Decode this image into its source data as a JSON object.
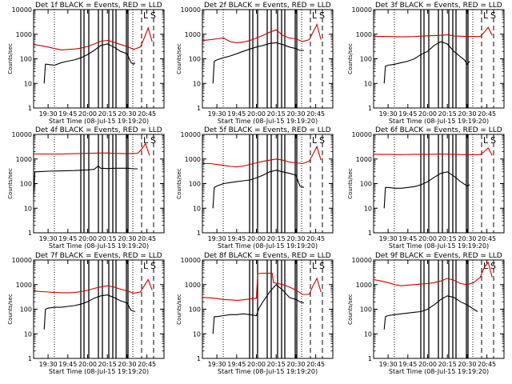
{
  "figure": {
    "panel_titles": [
      "Det 1f BLACK = Events, RED = LLD",
      "Det 2f BLACK = Events, RED = LLD",
      "Det 3f BLACK = Events, RED = LLD",
      "Det 4f BLACK = Events, RED = LLD",
      "Det 5f BLACK = Events, RED = LLD",
      "Det 6f BLACK = Events, RED = LLD",
      "Det 7f BLACK = Events, RED = LLD",
      "Det 8f BLACK = Events, RED = LLD",
      "Det 9f BLACK = Events, RED = LLD"
    ],
    "ylabel": "Counts/sec",
    "xlabel": "Start Time (08-Jul-15 19:19:20)",
    "panel_letters": [
      "L",
      "S"
    ],
    "colors": {
      "events": "#000000",
      "lld": "#cc0000"
    }
  },
  "chart_data": [
    {
      "type": "line",
      "title": "Det 1f BLACK = Events, RED = LLD",
      "xlabel": "Start Time (08-Jul-15 19:19:20)",
      "ylabel": "Counts/sec",
      "yscale": "log",
      "ylim": [
        1,
        10000
      ],
      "xlim": [
        "19:19",
        "20:58"
      ],
      "xticks": [
        "19:30",
        "19:45",
        "20:00",
        "20:15",
        "20:30",
        "20:45"
      ],
      "yticks": [
        "1",
        "10",
        "100",
        "1000",
        "10000"
      ],
      "series": [
        {
          "name": "Events",
          "color": "#000000",
          "x": [
            "19:27",
            "19:28",
            "19:29",
            "19:35",
            "19:40",
            "19:45",
            "19:50",
            "19:55",
            "20:00",
            "20:05",
            "20:10",
            "20:15",
            "20:20",
            "20:25",
            "20:30",
            "20:33",
            "20:35",
            "20:36"
          ],
          "y": [
            10,
            60,
            60,
            55,
            70,
            80,
            90,
            110,
            150,
            220,
            350,
            400,
            300,
            200,
            160,
            70,
            60,
            70
          ]
        },
        {
          "name": "LLD",
          "color": "#cc0000",
          "x": [
            "19:19",
            "19:25",
            "19:30",
            "19:35",
            "19:40",
            "19:45",
            "19:50",
            "19:55",
            "20:00",
            "20:05",
            "20:10",
            "20:15",
            "20:20",
            "20:25",
            "20:30",
            "20:35",
            "20:40",
            "20:43",
            "20:46",
            "20:49"
          ],
          "y": [
            380,
            340,
            300,
            260,
            230,
            240,
            250,
            270,
            320,
            400,
            520,
            560,
            470,
            380,
            320,
            240,
            300,
            700,
            1800,
            500
          ]
        }
      ]
    },
    {
      "type": "line",
      "title": "Det 2f BLACK = Events, RED = LLD",
      "xlabel": "Start Time (08-Jul-15 19:19:20)",
      "ylabel": "Counts/sec",
      "yscale": "log",
      "ylim": [
        1,
        10000
      ],
      "xlim": [
        "19:19",
        "20:58"
      ],
      "xticks": [
        "19:30",
        "19:45",
        "20:00",
        "20:15",
        "20:30",
        "20:45"
      ],
      "yticks": [
        "1",
        "10",
        "100",
        "1000",
        "10000"
      ],
      "series": [
        {
          "name": "Events",
          "color": "#000000",
          "x": [
            "19:27",
            "19:28",
            "19:30",
            "19:35",
            "19:40",
            "19:45",
            "19:50",
            "19:55",
            "20:00",
            "20:05",
            "20:10",
            "20:15",
            "20:20",
            "20:25",
            "20:30",
            "20:33",
            "20:36"
          ],
          "y": [
            10,
            80,
            90,
            110,
            130,
            160,
            200,
            250,
            300,
            350,
            420,
            450,
            380,
            300,
            260,
            220,
            220
          ]
        },
        {
          "name": "LLD",
          "color": "#cc0000",
          "x": [
            "19:19",
            "19:25",
            "19:30",
            "19:35",
            "19:40",
            "19:45",
            "19:50",
            "19:55",
            "20:00",
            "20:05",
            "20:10",
            "20:15",
            "20:20",
            "20:25",
            "20:30",
            "20:35",
            "20:40",
            "20:43",
            "20:46",
            "20:49"
          ],
          "y": [
            550,
            600,
            650,
            700,
            500,
            450,
            480,
            550,
            700,
            900,
            1200,
            1500,
            900,
            700,
            650,
            500,
            600,
            1200,
            2500,
            600
          ]
        }
      ]
    },
    {
      "type": "line",
      "title": "Det 3f BLACK = Events, RED = LLD",
      "xlabel": "Start Time (08-Jul-15 19:19:20)",
      "ylabel": "Counts/sec",
      "yscale": "log",
      "ylim": [
        1,
        10000
      ],
      "xlim": [
        "19:19",
        "20:58"
      ],
      "xticks": [
        "19:30",
        "19:45",
        "20:00",
        "20:15",
        "20:30",
        "20:45"
      ],
      "yticks": [
        "1",
        "10",
        "100",
        "1000",
        "10000"
      ],
      "series": [
        {
          "name": "Events",
          "color": "#000000",
          "x": [
            "19:27",
            "19:28",
            "19:30",
            "19:35",
            "19:40",
            "19:45",
            "19:50",
            "19:55",
            "20:00",
            "20:05",
            "20:10",
            "20:15",
            "20:20",
            "20:25",
            "20:28",
            "20:30",
            "20:32"
          ],
          "y": [
            10,
            50,
            55,
            60,
            70,
            80,
            100,
            150,
            200,
            350,
            500,
            400,
            200,
            120,
            90,
            60,
            80
          ]
        },
        {
          "name": "LLD",
          "color": "#cc0000",
          "x": [
            "19:19",
            "19:30",
            "19:40",
            "19:50",
            "20:00",
            "20:10",
            "20:15",
            "20:20",
            "20:30",
            "20:40",
            "20:43",
            "20:46",
            "20:49"
          ],
          "y": [
            820,
            800,
            780,
            800,
            860,
            900,
            950,
            850,
            800,
            800,
            1200,
            1900,
            900
          ]
        }
      ]
    },
    {
      "type": "line",
      "title": "Det 4f BLACK = Events, RED = LLD",
      "xlabel": "Start Time (08-Jul-15 19:19:20)",
      "ylabel": "Counts/sec",
      "yscale": "log",
      "ylim": [
        1,
        10000
      ],
      "xlim": [
        "19:19",
        "20:58"
      ],
      "xticks": [
        "19:30",
        "19:45",
        "20:00",
        "20:15",
        "20:30",
        "20:45"
      ],
      "yticks": [
        "1",
        "10",
        "100",
        "1000",
        "10000"
      ],
      "series": [
        {
          "name": "Events",
          "color": "#000000",
          "x": [
            "19:19",
            "19:20",
            "19:25",
            "19:30",
            "19:40",
            "19:50",
            "20:00",
            "20:05",
            "20:08",
            "20:10",
            "20:15",
            "20:20",
            "20:30",
            "20:35",
            "20:38"
          ],
          "y": [
            30,
            300,
            310,
            320,
            330,
            340,
            360,
            380,
            520,
            420,
            410,
            420,
            420,
            400,
            400
          ]
        },
        {
          "name": "LLD",
          "color": "#cc0000",
          "x": [
            "19:19",
            "19:30",
            "19:40",
            "19:50",
            "20:00",
            "20:10",
            "20:15",
            "20:20",
            "20:30",
            "20:38",
            "20:41",
            "20:44",
            "20:47"
          ],
          "y": [
            1600,
            1600,
            1600,
            1650,
            1700,
            1750,
            1750,
            1700,
            1650,
            1700,
            2500,
            4200,
            1400
          ]
        }
      ]
    },
    {
      "type": "line",
      "title": "Det 5f BLACK = Events, RED = LLD",
      "xlabel": "Start Time (08-Jul-15 19:19:20)",
      "ylabel": "Counts/sec",
      "yscale": "log",
      "ylim": [
        1,
        10000
      ],
      "xlim": [
        "19:19",
        "20:58"
      ],
      "xticks": [
        "19:30",
        "19:45",
        "20:00",
        "20:15",
        "20:30",
        "20:45"
      ],
      "yticks": [
        "1",
        "10",
        "100",
        "1000",
        "10000"
      ],
      "series": [
        {
          "name": "Events",
          "color": "#000000",
          "x": [
            "19:27",
            "19:28",
            "19:30",
            "19:35",
            "19:40",
            "19:45",
            "19:50",
            "19:55",
            "20:00",
            "20:05",
            "20:10",
            "20:15",
            "20:20",
            "20:25",
            "20:30",
            "20:33",
            "20:36"
          ],
          "y": [
            10,
            70,
            80,
            100,
            110,
            120,
            130,
            140,
            170,
            220,
            300,
            350,
            300,
            260,
            220,
            80,
            70
          ]
        },
        {
          "name": "LLD",
          "color": "#cc0000",
          "x": [
            "19:19",
            "19:25",
            "19:30",
            "19:35",
            "19:40",
            "19:45",
            "19:50",
            "19:55",
            "20:00",
            "20:05",
            "20:10",
            "20:15",
            "20:20",
            "20:25",
            "20:30",
            "20:35",
            "20:40",
            "20:43",
            "20:46",
            "20:49"
          ],
          "y": [
            650,
            650,
            600,
            550,
            500,
            480,
            520,
            600,
            700,
            800,
            900,
            1000,
            900,
            750,
            700,
            650,
            800,
            1600,
            3200,
            900
          ]
        }
      ]
    },
    {
      "type": "line",
      "title": "Det 6f BLACK = Events, RED = LLD",
      "xlabel": "Start Time (08-Jul-15 19:19:20)",
      "ylabel": "Counts/sec",
      "yscale": "log",
      "ylim": [
        1,
        10000
      ],
      "xlim": [
        "19:19",
        "20:58"
      ],
      "xticks": [
        "19:30",
        "19:45",
        "20:00",
        "20:15",
        "20:30",
        "20:45"
      ],
      "yticks": [
        "1",
        "10",
        "100",
        "1000",
        "10000"
      ],
      "series": [
        {
          "name": "Events",
          "color": "#000000",
          "x": [
            "19:27",
            "19:28",
            "19:30",
            "19:35",
            "19:40",
            "19:45",
            "19:50",
            "19:55",
            "20:00",
            "20:05",
            "20:10",
            "20:15",
            "20:20",
            "20:25",
            "20:30",
            "20:32"
          ],
          "y": [
            10,
            70,
            70,
            65,
            65,
            70,
            75,
            90,
            120,
            180,
            260,
            300,
            200,
            120,
            80,
            90
          ]
        },
        {
          "name": "LLD",
          "color": "#cc0000",
          "x": [
            "19:19",
            "19:30",
            "19:40",
            "19:50",
            "20:00",
            "20:10",
            "20:20",
            "20:30",
            "20:40",
            "20:43",
            "20:46",
            "20:49"
          ],
          "y": [
            1550,
            1550,
            1500,
            1550,
            1550,
            1600,
            1550,
            1500,
            1500,
            2000,
            2800,
            1400
          ]
        }
      ]
    },
    {
      "type": "line",
      "title": "Det 7f BLACK = Events, RED = LLD",
      "xlabel": "Start Time (08-Jul-15 19:19:20)",
      "ylabel": "Counts/sec",
      "yscale": "log",
      "ylim": [
        1,
        10000
      ],
      "xlim": [
        "19:19",
        "20:58"
      ],
      "xticks": [
        "19:30",
        "19:45",
        "20:00",
        "20:15",
        "20:30",
        "20:45"
      ],
      "yticks": [
        "1",
        "10",
        "100",
        "1000",
        "10000"
      ],
      "series": [
        {
          "name": "Events",
          "color": "#000000",
          "x": [
            "19:27",
            "19:28",
            "19:30",
            "19:35",
            "19:40",
            "19:45",
            "19:50",
            "19:55",
            "20:00",
            "20:05",
            "20:10",
            "20:15",
            "20:20",
            "20:25",
            "20:30",
            "20:33",
            "20:36"
          ],
          "y": [
            15,
            100,
            110,
            120,
            120,
            130,
            140,
            160,
            200,
            280,
            350,
            380,
            300,
            220,
            180,
            90,
            80
          ]
        },
        {
          "name": "LLD",
          "color": "#cc0000",
          "x": [
            "19:19",
            "19:25",
            "19:30",
            "19:35",
            "19:40",
            "19:45",
            "19:50",
            "19:55",
            "20:00",
            "20:05",
            "20:10",
            "20:15",
            "20:20",
            "20:25",
            "20:30",
            "20:35",
            "20:40",
            "20:43",
            "20:46",
            "20:49"
          ],
          "y": [
            550,
            520,
            500,
            480,
            470,
            460,
            480,
            520,
            580,
            700,
            800,
            900,
            800,
            650,
            550,
            450,
            500,
            900,
            1600,
            600
          ]
        }
      ]
    },
    {
      "type": "line",
      "title": "Det 8f BLACK = Events, RED = LLD",
      "xlabel": "Start Time (08-Jul-15 19:19:20)",
      "ylabel": "Counts/sec",
      "yscale": "log",
      "ylim": [
        1,
        10000
      ],
      "xlim": [
        "19:19",
        "20:58"
      ],
      "xticks": [
        "19:30",
        "19:45",
        "20:00",
        "20:15",
        "20:30",
        "20:45"
      ],
      "yticks": [
        "1",
        "10",
        "100",
        "1000",
        "10000"
      ],
      "series": [
        {
          "name": "Events",
          "color": "#000000",
          "x": [
            "19:27",
            "19:28",
            "19:30",
            "19:35",
            "19:40",
            "19:45",
            "19:50",
            "19:55",
            "20:00",
            "20:02",
            "20:05",
            "20:10",
            "20:15",
            "20:20",
            "20:25",
            "20:30",
            "20:33",
            "20:36"
          ],
          "y": [
            10,
            50,
            50,
            55,
            60,
            60,
            65,
            60,
            55,
            110,
            200,
            500,
            1000,
            600,
            300,
            250,
            200,
            180
          ]
        },
        {
          "name": "LLD",
          "color": "#cc0000",
          "x": [
            "19:19",
            "19:25",
            "19:30",
            "19:35",
            "19:40",
            "19:45",
            "19:50",
            "19:55",
            "20:00",
            "20:01",
            "20:05",
            "20:10",
            "20:12",
            "20:13",
            "20:20",
            "20:25",
            "20:30",
            "20:35",
            "20:40",
            "20:43",
            "20:46",
            "20:49"
          ],
          "y": [
            300,
            290,
            270,
            250,
            240,
            230,
            240,
            260,
            280,
            2800,
            2900,
            2900,
            2900,
            1200,
            1000,
            800,
            600,
            400,
            400,
            900,
            1800,
            500
          ]
        }
      ]
    },
    {
      "type": "line",
      "title": "Det 9f BLACK = Events, RED = LLD",
      "xlabel": "Start Time (08-Jul-15 19:19:20)",
      "ylabel": "Counts/sec",
      "yscale": "log",
      "ylim": [
        1,
        10000
      ],
      "xlim": [
        "19:19",
        "20:58"
      ],
      "xticks": [
        "19:30",
        "19:45",
        "20:00",
        "20:15",
        "20:30",
        "20:45"
      ],
      "yticks": [
        "1",
        "10",
        "100",
        "1000",
        "10000"
      ],
      "series": [
        {
          "name": "Events",
          "color": "#000000",
          "x": [
            "19:27",
            "19:28",
            "19:30",
            "19:35",
            "19:40",
            "19:45",
            "19:50",
            "19:55",
            "20:00",
            "20:05",
            "20:10",
            "20:15",
            "20:20",
            "20:25",
            "20:30",
            "20:35",
            "20:38"
          ],
          "y": [
            15,
            50,
            55,
            60,
            65,
            70,
            75,
            80,
            100,
            150,
            250,
            350,
            300,
            200,
            150,
            100,
            80
          ]
        },
        {
          "name": "LLD",
          "color": "#cc0000",
          "x": [
            "19:19",
            "19:25",
            "19:30",
            "19:35",
            "19:40",
            "19:45",
            "19:50",
            "19:55",
            "20:00",
            "20:05",
            "20:10",
            "20:15",
            "20:20",
            "20:25",
            "20:30",
            "20:35",
            "20:40",
            "20:43",
            "20:46",
            "20:49"
          ],
          "y": [
            1600,
            1400,
            1200,
            1000,
            900,
            950,
            1000,
            1050,
            1100,
            1200,
            1400,
            1800,
            1500,
            1100,
            1000,
            1200,
            2000,
            5000,
            8000,
            2000
          ]
        }
      ]
    }
  ]
}
